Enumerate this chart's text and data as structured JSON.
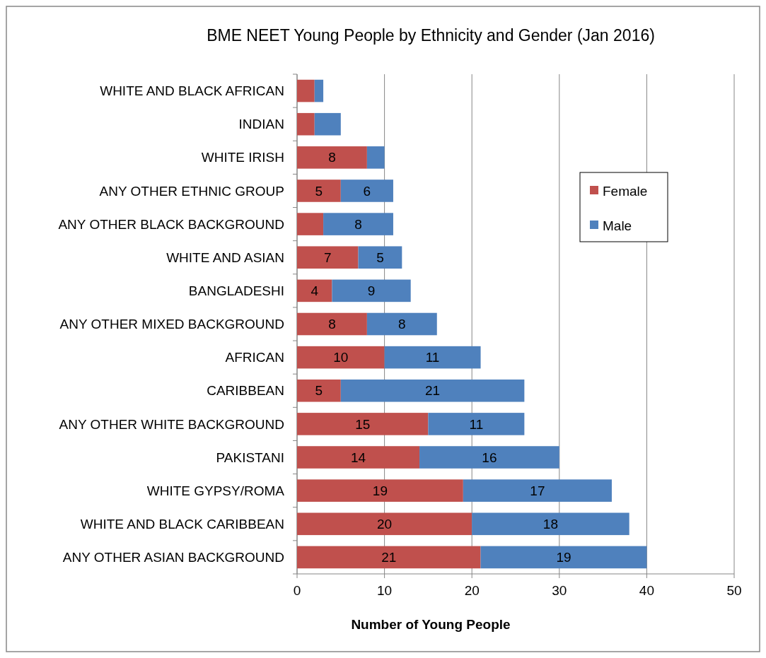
{
  "chart_data": {
    "type": "bar",
    "orientation": "horizontal",
    "stacked": true,
    "title": "BME NEET Young People by Ethnicity and Gender (Jan 2016)",
    "xlabel": "Number of Young People",
    "categories": [
      "WHITE AND BLACK AFRICAN",
      "INDIAN",
      "WHITE IRISH",
      "ANY OTHER ETHNIC GROUP",
      "ANY OTHER BLACK BACKGROUND",
      "WHITE AND ASIAN",
      "BANGLADESHI",
      "ANY OTHER MIXED BACKGROUND",
      "AFRICAN",
      "CARIBBEAN",
      "ANY OTHER WHITE BACKGROUND",
      "PAKISTANI",
      "WHITE GYPSY/ROMA",
      "WHITE AND BLACK CARIBBEAN",
      "ANY OTHER ASIAN BACKGROUND"
    ],
    "series": [
      {
        "name": "Female",
        "color": "#c0504d",
        "values": [
          2,
          2,
          8,
          5,
          3,
          7,
          4,
          8,
          10,
          5,
          15,
          14,
          19,
          20,
          21
        ],
        "value_labels": [
          null,
          null,
          "8",
          "5",
          null,
          "7",
          "4",
          "8",
          "10",
          "5",
          "15",
          "14",
          "19",
          "20",
          "21"
        ]
      },
      {
        "name": "Male",
        "color": "#4f81bd",
        "values": [
          1,
          3,
          2,
          6,
          8,
          5,
          9,
          8,
          11,
          21,
          11,
          16,
          17,
          18,
          19
        ],
        "value_labels": [
          null,
          null,
          null,
          "6",
          "8",
          "5",
          "9",
          "8",
          "11",
          "21",
          "11",
          "16",
          "17",
          "18",
          "19"
        ]
      }
    ],
    "xlim": [
      0,
      50
    ],
    "xticks": [
      0,
      10,
      20,
      30,
      40,
      50
    ],
    "grid": "x",
    "legend": "top right"
  }
}
